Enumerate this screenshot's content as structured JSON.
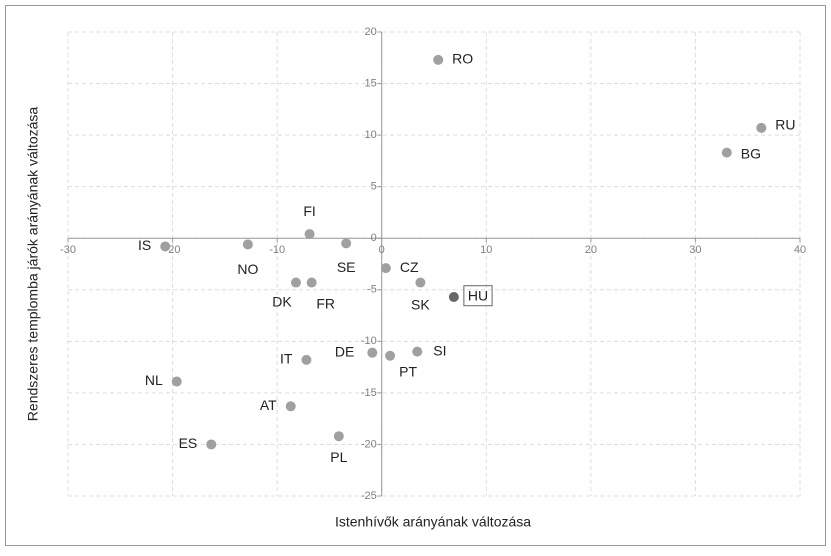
{
  "chart_data": {
    "type": "scatter",
    "x_label": "Istenhívők arányának változása",
    "y_label": "Rendszeres templomba járók arányának változása",
    "labels": [
      "RO",
      "RU",
      "BG",
      "FI",
      "IS",
      "NO",
      "SE",
      "CZ",
      "SK",
      "HU",
      "DK",
      "FR",
      "IT",
      "DE",
      "PT",
      "SI",
      "NL",
      "AT",
      "ES",
      "PL"
    ],
    "x": [
      5.4,
      36.3,
      33.0,
      -6.9,
      -20.7,
      -12.8,
      -3.4,
      0.4,
      3.7,
      6.9,
      -8.2,
      -6.7,
      -7.2,
      -0.9,
      0.8,
      3.4,
      -19.6,
      -8.7,
      -16.3,
      -4.1
    ],
    "values": [
      17.3,
      10.7,
      8.3,
      0.4,
      -0.8,
      -0.6,
      -0.5,
      -2.9,
      -4.3,
      -5.7,
      -4.3,
      -4.3,
      -11.8,
      -11.1,
      -11.4,
      -11.0,
      -13.9,
      -16.3,
      -20.0,
      -19.2
    ],
    "colors": [
      "#a0a0a0",
      "#a0a0a0",
      "#a0a0a0",
      "#a0a0a0",
      "#a0a0a0",
      "#a0a0a0",
      "#a0a0a0",
      "#a0a0a0",
      "#a0a0a0",
      "#666666",
      "#a0a0a0",
      "#a0a0a0",
      "#a0a0a0",
      "#a0a0a0",
      "#a0a0a0",
      "#a0a0a0",
      "#a0a0a0",
      "#a0a0a0",
      "#a0a0a0",
      "#a0a0a0"
    ],
    "xlim": [
      -30,
      40
    ],
    "xticks": [
      -30,
      -20,
      -10,
      0,
      10,
      20,
      30,
      40
    ],
    "ylim": [
      -25,
      20
    ],
    "yticks": [
      -25,
      -20,
      -15,
      -10,
      -5,
      0,
      5,
      10,
      15,
      20
    ],
    "grid": true
  }
}
